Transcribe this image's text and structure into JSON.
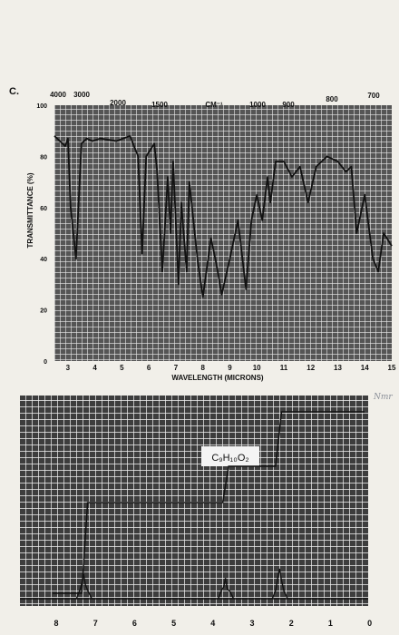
{
  "problem_label": "C.",
  "margin_note": "Nmr",
  "chart_data": [
    {
      "type": "line",
      "top_ticks": [
        "4000",
        "3000",
        "2000",
        "1500",
        "CM⁻¹",
        "1000",
        "900",
        "800",
        "700"
      ],
      "ylabel": "TRANSMITTANCE (%)",
      "xlabel": "WAVELENGTH (MICRONS)",
      "y_ticks": [
        "0",
        "20",
        "40",
        "60",
        "80",
        "100"
      ],
      "x_ticks": [
        "3",
        "4",
        "5",
        "6",
        "7",
        "8",
        "9",
        "10",
        "11",
        "12",
        "13",
        "14",
        "15"
      ],
      "xlim": [
        2.5,
        15
      ],
      "ylim": [
        0,
        100
      ],
      "grid": true,
      "x": [
        2.5,
        2.9,
        3.0,
        3.1,
        3.3,
        3.5,
        3.7,
        3.9,
        4.2,
        4.8,
        5.3,
        5.6,
        5.75,
        5.9,
        6.2,
        6.3,
        6.5,
        6.7,
        6.8,
        6.9,
        7.1,
        7.2,
        7.4,
        7.5,
        7.8,
        8.0,
        8.3,
        8.5,
        8.7,
        9.0,
        9.3,
        9.6,
        9.8,
        10.0,
        10.2,
        10.4,
        10.5,
        10.7,
        11.0,
        11.3,
        11.6,
        11.9,
        12.2,
        12.6,
        13.0,
        13.3,
        13.5,
        13.7,
        14.0,
        14.3,
        14.5,
        14.7,
        15.0
      ],
      "y": [
        88,
        84,
        87,
        60,
        40,
        85,
        87,
        86,
        87,
        86,
        88,
        80,
        42,
        80,
        85,
        75,
        35,
        72,
        50,
        78,
        30,
        62,
        35,
        70,
        40,
        25,
        48,
        38,
        26,
        40,
        55,
        28,
        55,
        65,
        55,
        72,
        62,
        78,
        78,
        72,
        76,
        62,
        76,
        80,
        78,
        74,
        76,
        50,
        65,
        40,
        35,
        50,
        45
      ]
    },
    {
      "type": "line",
      "formula": "C₉H₁₀O₂",
      "x_ticks": [
        "8",
        "7",
        "6",
        "5",
        "4",
        "3",
        "2",
        "1",
        "0"
      ],
      "xlim": [
        8,
        0
      ],
      "grid": true,
      "integral_steps": [
        {
          "ppm_start": 7.35,
          "ppm_end": 7.2,
          "height": 5
        },
        {
          "ppm_start": 3.75,
          "ppm_end": 3.6,
          "height": 2
        },
        {
          "ppm_start": 2.4,
          "ppm_end": 2.25,
          "height": 3
        }
      ],
      "peaks": [
        {
          "ppm": 7.3,
          "height": 0.45
        },
        {
          "ppm": 3.68,
          "height": 0.38
        },
        {
          "ppm": 2.3,
          "height": 0.55
        }
      ]
    }
  ]
}
